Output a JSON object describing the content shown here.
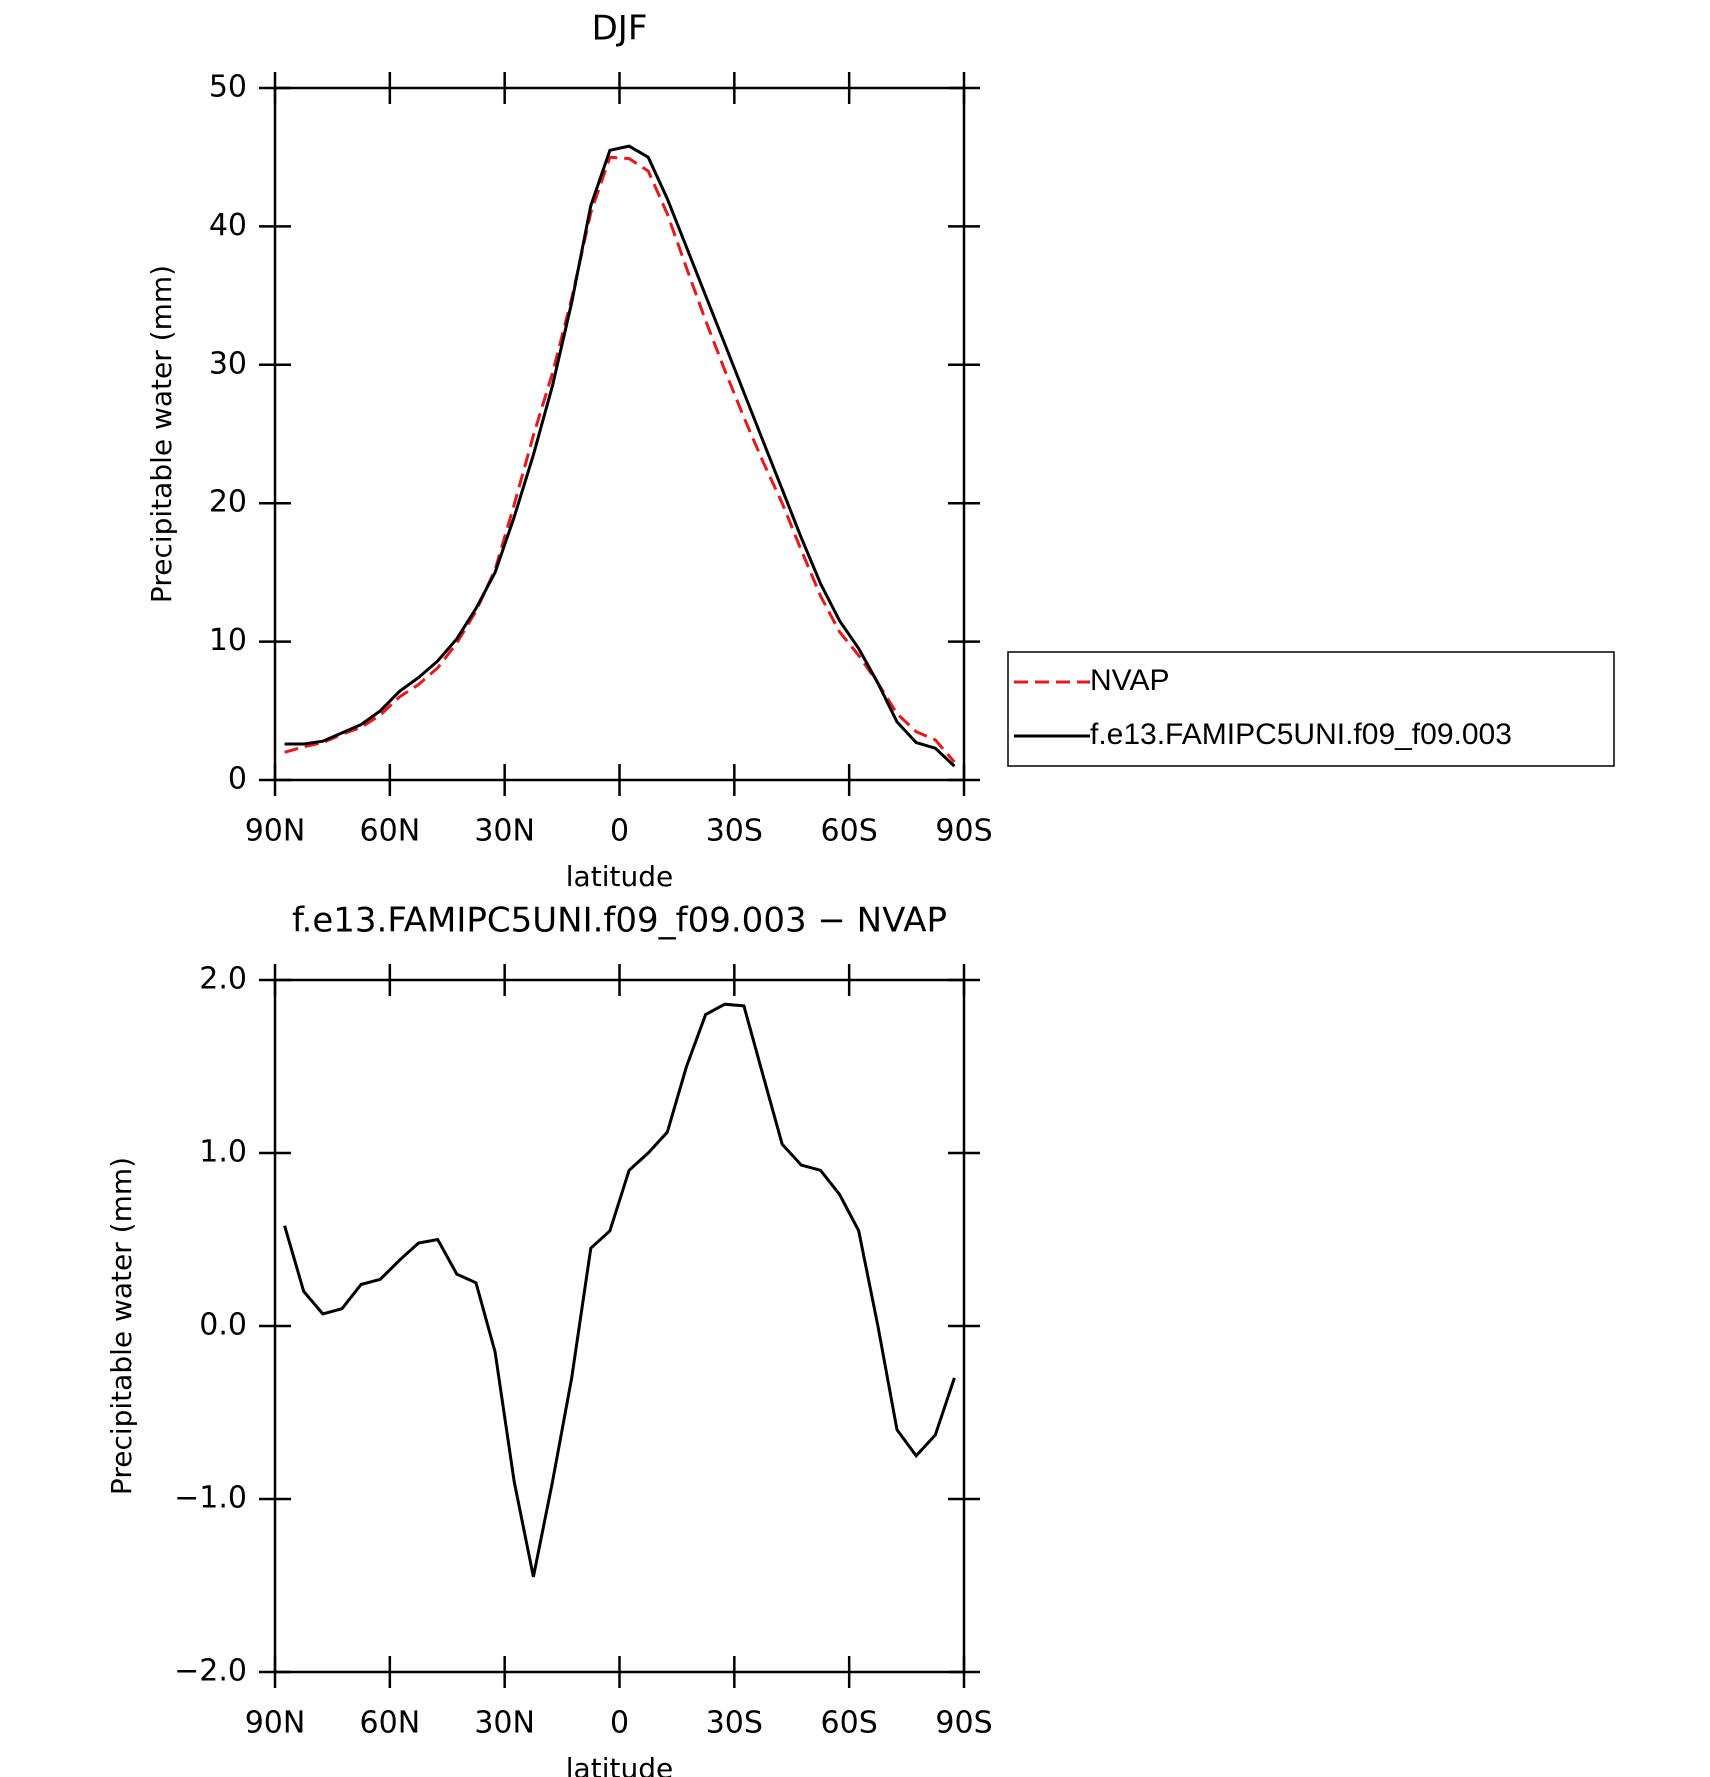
{
  "chart_data": [
    {
      "type": "line",
      "title": "DJF",
      "xlabel": "latitude",
      "ylabel": "Precipitable water (mm)",
      "x": [
        87.5,
        82.5,
        77.5,
        72.5,
        67.5,
        62.5,
        57.5,
        52.5,
        47.5,
        42.5,
        37.5,
        32.5,
        27.5,
        22.5,
        17.5,
        12.5,
        7.5,
        2.5,
        -2.5,
        -7.5,
        -12.5,
        -17.5,
        -22.5,
        -27.5,
        -32.5,
        -37.5,
        -42.5,
        -47.5,
        -52.5,
        -57.5,
        -62.5,
        -67.5,
        -72.5,
        -77.5,
        -82.5,
        -87.5
      ],
      "series": [
        {
          "name": "NVAP",
          "color": "#e8191c",
          "style": "dashed",
          "values": [
            2.0,
            2.4,
            2.7,
            3.3,
            3.8,
            4.7,
            6.0,
            6.9,
            8.1,
            9.9,
            12.2,
            15.2,
            19.9,
            24.9,
            29.4,
            34.8,
            41.0,
            45.0,
            44.9,
            44.0,
            40.9,
            37.0,
            33.2,
            29.6,
            26.2,
            23.0,
            20.0,
            16.6,
            13.3,
            10.7,
            9.0,
            7.0,
            4.8,
            3.5,
            2.9,
            1.3
          ]
        },
        {
          "name": "f.e13.FAMIPC5UNI.f09_f09.003",
          "color": "#000000",
          "style": "solid",
          "values": [
            2.6,
            2.6,
            2.8,
            3.4,
            4.0,
            5.0,
            6.4,
            7.4,
            8.6,
            10.2,
            12.4,
            15.0,
            19.0,
            23.5,
            28.5,
            34.5,
            41.5,
            45.5,
            45.8,
            45.0,
            42.0,
            38.5,
            35.0,
            31.5,
            28.0,
            24.5,
            21.0,
            17.5,
            14.2,
            11.5,
            9.5,
            7.0,
            4.2,
            2.7,
            2.3,
            1.0
          ]
        }
      ],
      "xlim": [
        90,
        -90
      ],
      "xticks": [
        {
          "value": 90,
          "label": "90N"
        },
        {
          "value": 60,
          "label": "60N"
        },
        {
          "value": 30,
          "label": "30N"
        },
        0,
        {
          "value": -30,
          "label": "30S"
        },
        {
          "value": -60,
          "label": "60S"
        },
        {
          "value": -90,
          "label": "90S"
        }
      ],
      "ylim": [
        0,
        50
      ],
      "yticks": [
        0,
        10,
        20,
        30,
        40,
        50
      ],
      "legend": "right"
    },
    {
      "type": "line",
      "title": "f.e13.FAMIPC5UNI.f09_f09.003 − NVAP",
      "xlabel": "latitude",
      "ylabel": "Precipitable water (mm)",
      "x": [
        87.5,
        82.5,
        77.5,
        72.5,
        67.5,
        62.5,
        57.5,
        52.5,
        47.5,
        42.5,
        37.5,
        32.5,
        27.5,
        22.5,
        17.5,
        12.5,
        7.5,
        2.5,
        -2.5,
        -7.5,
        -12.5,
        -17.5,
        -22.5,
        -27.5,
        -32.5,
        -37.5,
        -42.5,
        -47.5,
        -52.5,
        -57.5,
        -62.5,
        -67.5,
        -72.5,
        -77.5,
        -82.5,
        -87.5
      ],
      "series": [
        {
          "color": "#000000",
          "style": "solid",
          "values": [
            0.58,
            0.2,
            0.07,
            0.1,
            0.24,
            0.27,
            0.38,
            0.48,
            0.5,
            0.3,
            0.25,
            -0.15,
            -0.9,
            -1.45,
            -0.9,
            -0.3,
            0.45,
            0.55,
            0.9,
            1.0,
            1.12,
            1.5,
            1.8,
            1.86,
            1.85,
            1.45,
            1.05,
            0.93,
            0.9,
            0.76,
            0.55,
            0.0,
            -0.6,
            -0.75,
            -0.63,
            -0.3
          ]
        }
      ],
      "xlim": [
        90,
        -90
      ],
      "xticks": [
        {
          "value": 90,
          "label": "90N"
        },
        {
          "value": 60,
          "label": "60N"
        },
        {
          "value": 30,
          "label": "30N"
        },
        0,
        {
          "value": -30,
          "label": "30S"
        },
        {
          "value": -60,
          "label": "60S"
        },
        {
          "value": -90,
          "label": "90S"
        }
      ],
      "ylim": [
        -2,
        2
      ],
      "yticks": [
        {
          "value": -2,
          "label": "−2.0"
        },
        {
          "value": -1,
          "label": "−1.0"
        },
        {
          "value": 0,
          "label": "0.0"
        },
        {
          "value": 1,
          "label": "1.0"
        },
        {
          "value": 2,
          "label": "2.0"
        }
      ]
    }
  ]
}
